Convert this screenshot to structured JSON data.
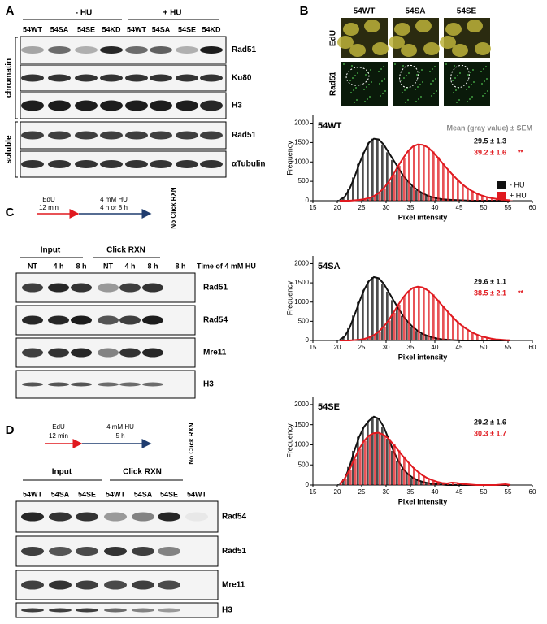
{
  "panel_a": {
    "label": "A",
    "conditions": [
      "- HU",
      "+ HU"
    ],
    "lanes": [
      "54WT",
      "54SA",
      "54SE",
      "54KD",
      "54WT",
      "54SA",
      "54SE",
      "54KD"
    ],
    "compartments": [
      "chromatin",
      "soluble"
    ],
    "proteins": [
      "Rad51",
      "Ku80",
      "H3",
      "Rad51",
      "αTubulin"
    ]
  },
  "panel_b": {
    "label": "B",
    "columns": [
      "54WT",
      "54SA",
      "54SE"
    ],
    "rows": [
      "EdU",
      "Rad51"
    ]
  },
  "chart_data": [
    {
      "type": "histogram",
      "title": "54WT",
      "subtitle": "Mean (gray value) ± SEM",
      "annotations": [
        "29.5 ± 1.3",
        "39.2 ± 1.6"
      ],
      "significance": "**",
      "xlabel": "Pixel intensity",
      "ylabel": "Frequency",
      "bins": [
        20,
        21,
        22,
        23,
        24,
        25,
        26,
        27,
        28,
        29,
        30,
        31,
        32,
        33,
        34,
        35,
        36,
        37,
        38,
        39,
        40,
        41,
        42,
        43,
        44,
        45,
        46,
        47,
        48,
        49,
        50,
        51,
        52,
        53,
        54,
        55,
        56
      ],
      "series": [
        {
          "name": "- HU",
          "color": "#111111",
          "values": [
            20,
            100,
            300,
            600,
            950,
            1250,
            1500,
            1600,
            1580,
            1450,
            1250,
            1050,
            850,
            650,
            500,
            370,
            270,
            190,
            130,
            90,
            60,
            40,
            30,
            20,
            15,
            10,
            5,
            0,
            0,
            0,
            0,
            0,
            0,
            0,
            0,
            0
          ]
        },
        {
          "name": "+ HU",
          "color": "#e0191f",
          "values": [
            0,
            0,
            0,
            10,
            20,
            40,
            70,
            120,
            200,
            320,
            480,
            680,
            900,
            1100,
            1280,
            1400,
            1450,
            1440,
            1380,
            1270,
            1130,
            980,
            830,
            690,
            560,
            440,
            340,
            260,
            190,
            140,
            100,
            70,
            50,
            30,
            20,
            10
          ]
        }
      ],
      "legend": "right",
      "xlim": [
        15,
        60
      ],
      "ylim": [
        0,
        2200
      ],
      "xticks": [
        15,
        20,
        25,
        30,
        35,
        40,
        45,
        50,
        55,
        60
      ],
      "yticks": [
        0,
        500,
        1000,
        1500,
        2000
      ]
    },
    {
      "type": "histogram",
      "title": "54SA",
      "annotations": [
        "29.6 ± 1.1",
        "38.5 ± 2.1"
      ],
      "significance": "**",
      "xlabel": "Pixel intensity",
      "ylabel": "Frequency",
      "bins": [
        20,
        21,
        22,
        23,
        24,
        25,
        26,
        27,
        28,
        29,
        30,
        31,
        32,
        33,
        34,
        35,
        36,
        37,
        38,
        39,
        40,
        41,
        42,
        43,
        44,
        45,
        46,
        47,
        48,
        49,
        50,
        51,
        52,
        53,
        54,
        55,
        56
      ],
      "series": [
        {
          "color": "#111111",
          "values": [
            20,
            100,
            320,
            650,
            1000,
            1320,
            1550,
            1650,
            1620,
            1480,
            1270,
            1050,
            840,
            640,
            480,
            350,
            250,
            170,
            120,
            80,
            50,
            30,
            20,
            10,
            5,
            0,
            0,
            0,
            0,
            0,
            0,
            0,
            0,
            0,
            0,
            0
          ]
        },
        {
          "color": "#e0191f",
          "values": [
            0,
            0,
            0,
            10,
            20,
            40,
            80,
            140,
            230,
            360,
            520,
            720,
            930,
            1120,
            1270,
            1370,
            1400,
            1380,
            1310,
            1200,
            1060,
            910,
            770,
            630,
            500,
            390,
            300,
            220,
            160,
            110,
            80,
            50,
            30,
            20,
            10,
            5
          ]
        }
      ],
      "xlim": [
        15,
        60
      ],
      "ylim": [
        0,
        2200
      ],
      "xticks": [
        15,
        20,
        25,
        30,
        35,
        40,
        45,
        50,
        55,
        60
      ],
      "yticks": [
        0,
        500,
        1000,
        1500,
        2000
      ]
    },
    {
      "type": "histogram",
      "title": "54SE",
      "annotations": [
        "29.2 ± 1.6",
        "30.3 ± 1.7"
      ],
      "xlabel": "Pixel intensity",
      "ylabel": "Frequency",
      "bins": [
        20,
        21,
        22,
        23,
        24,
        25,
        26,
        27,
        28,
        29,
        30,
        31,
        32,
        33,
        34,
        35,
        36,
        37,
        38,
        39,
        40,
        41,
        42,
        43,
        44,
        45,
        46,
        47,
        48,
        49,
        50,
        51,
        52,
        53,
        54,
        55,
        56
      ],
      "series": [
        {
          "color": "#111111",
          "values": [
            20,
            150,
            450,
            850,
            1200,
            1450,
            1600,
            1700,
            1650,
            1450,
            1150,
            850,
            600,
            400,
            270,
            180,
            120,
            80,
            50,
            30,
            20,
            10,
            0,
            0,
            0,
            0,
            0,
            0,
            0,
            0,
            0,
            0,
            0,
            0,
            0,
            0
          ]
        },
        {
          "color": "#e0191f",
          "values": [
            30,
            150,
            380,
            650,
            900,
            1100,
            1230,
            1290,
            1300,
            1250,
            1150,
            1010,
            860,
            710,
            570,
            440,
            330,
            240,
            170,
            120,
            80,
            50,
            40,
            60,
            50,
            30,
            20,
            10,
            0,
            0,
            0,
            0,
            0,
            10,
            20,
            0
          ]
        }
      ],
      "xlim": [
        15,
        60
      ],
      "ylim": [
        0,
        2200
      ],
      "xticks": [
        15,
        20,
        25,
        30,
        35,
        40,
        45,
        50,
        55,
        60
      ],
      "yticks": [
        0,
        500,
        1000,
        1500,
        2000
      ]
    }
  ],
  "panel_c": {
    "label": "C",
    "schematic": {
      "pulse": "EdU",
      "pulse_time": "12 min",
      "treatment": "4 mM HU",
      "treatment_time": "4 h or 8 h"
    },
    "control": "No Click RXN",
    "groups": [
      "Input",
      "Click RXN"
    ],
    "lanes": [
      "NT",
      "4 h",
      "8 h",
      "NT",
      "4 h",
      "8 h",
      "8 h"
    ],
    "lane_axis": "Time of 4 mM HU",
    "proteins": [
      "Rad51",
      "Rad54",
      "Mre11",
      "H3"
    ]
  },
  "panel_d": {
    "label": "D",
    "schematic": {
      "pulse": "EdU",
      "pulse_time": "12 min",
      "treatment": "4 mM HU",
      "treatment_time": "5 h"
    },
    "control": "No Click RXN",
    "groups": [
      "Input",
      "Click RXN"
    ],
    "lanes": [
      "54WT",
      "54SA",
      "54SE",
      "54WT",
      "54SA",
      "54SE",
      "54WT"
    ],
    "proteins": [
      "Rad54",
      "Rad51",
      "Mre11",
      "H3"
    ]
  }
}
